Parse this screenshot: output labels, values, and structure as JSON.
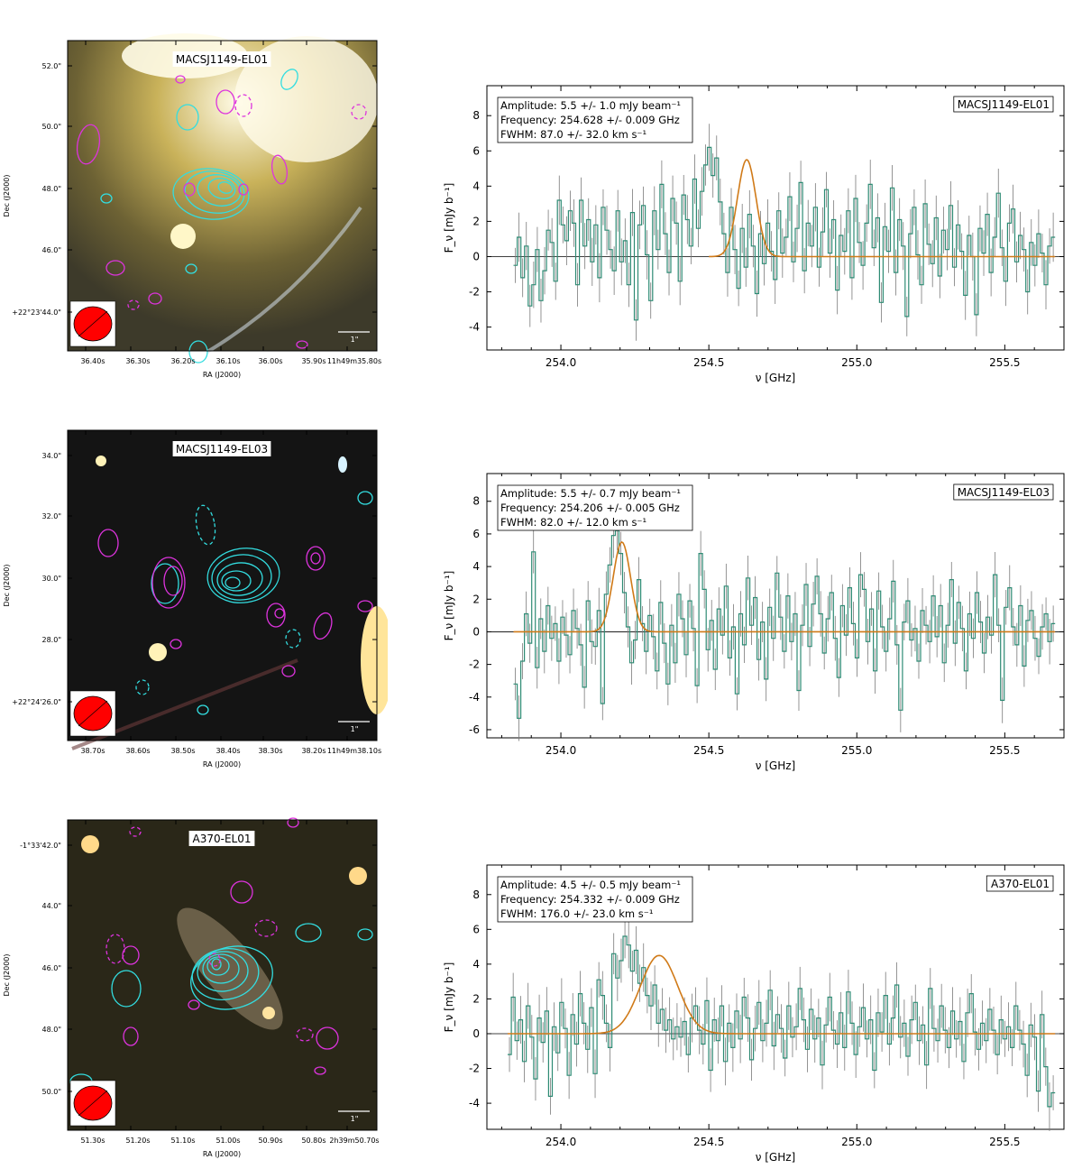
{
  "rows": [
    {
      "image": {
        "label": "MACSJ1149-EL01",
        "ra_ticks": [
          "36.40s",
          "36.30s",
          "36.20s",
          "36.10s",
          "36.00s",
          "35.90s",
          "11h49m35.80s"
        ],
        "dec_ticks": [
          "52.0\"",
          "50.0\"",
          "48.0\"",
          "46.0\"",
          "+22°23'44.0\""
        ],
        "xlabel": "RA (J2000)",
        "ylabel": "Dec (J2000)",
        "scale_label": "1\"",
        "background": "bright"
      },
      "spectrum": {
        "label": "MACSJ1149-EL01",
        "amplitude_text": "Amplitude: 5.5 +/- 1.0 mJy beam⁻¹",
        "frequency_text": "Frequency: 254.628 +/- 0.009 GHz",
        "fwhm_text": "FWHM: 87.0 +/- 32.0 km s⁻¹"
      }
    },
    {
      "image": {
        "label": "MACSJ1149-EL03",
        "ra_ticks": [
          "38.70s",
          "38.60s",
          "38.50s",
          "38.40s",
          "38.30s",
          "38.20s",
          "11h49m38.10s"
        ],
        "dec_ticks": [
          "34.0\"",
          "32.0\"",
          "30.0\"",
          "28.0\"",
          "+22°24'26.0\""
        ],
        "xlabel": "RA (J2000)",
        "ylabel": "Dec (J2000)",
        "scale_label": "1\"",
        "background": "dark"
      },
      "spectrum": {
        "label": "MACSJ1149-EL03",
        "amplitude_text": "Amplitude: 5.5 +/- 0.7 mJy beam⁻¹",
        "frequency_text": "Frequency: 254.206 +/- 0.005 GHz",
        "fwhm_text": "FWHM: 82.0 +/- 12.0 km s⁻¹"
      }
    },
    {
      "image": {
        "label": "A370-EL01",
        "ra_ticks": [
          "51.30s",
          "51.20s",
          "51.10s",
          "51.00s",
          "50.90s",
          "50.80s",
          "2h39m50.70s"
        ],
        "dec_ticks": [
          "-1°33'42.0\"",
          "44.0\"",
          "46.0\"",
          "48.0\"",
          "50.0\""
        ],
        "xlabel": "RA (J2000)",
        "ylabel": "Dec (J2000)",
        "scale_label": "1\"",
        "background": "galaxy"
      },
      "spectrum": {
        "label": "A370-EL01",
        "amplitude_text": "Amplitude: 4.5 +/- 0.5 mJy beam⁻¹",
        "frequency_text": "Frequency: 254.332 +/- 0.009 GHz",
        "fwhm_text": "FWHM: 176.0 +/- 23.0 km s⁻¹"
      }
    }
  ],
  "chart_data": [
    {
      "type": "line",
      "title": "MACSJ1149-EL01",
      "xlabel": "ν [GHz]",
      "ylabel": "F_ν [mJy b⁻¹]",
      "xlim": [
        253.75,
        255.7
      ],
      "ylim": [
        -5.3,
        9.7
      ],
      "xticks": [
        254.0,
        254.5,
        255.0,
        255.5
      ],
      "yticks": [
        -4,
        -2,
        0,
        2,
        4,
        6,
        8
      ],
      "fit": {
        "amplitude": 5.5,
        "center": 254.628,
        "fwhm_kms": 87.0
      },
      "data_range": [
        253.84,
        255.67
      ],
      "series": [
        {
          "values": [
            -0.5,
            1.1,
            -1.2,
            0.6,
            -2.8,
            -1.6,
            0.4,
            -2.5,
            -0.8,
            1.5,
            0.8,
            -1.4,
            3.2,
            1.8,
            0.9,
            2.6,
            1.9,
            -1.6,
            3.2,
            0.6,
            2.1,
            -0.3,
            1.8,
            -1.2,
            2.8,
            1.5,
            0.4,
            -0.8,
            2.6,
            -0.3,
            0.9,
            -1.6,
            2.5,
            -3.6,
            1.8,
            2.9,
            0.1,
            -2.5,
            2.6,
            0.4,
            4.1,
            1.3,
            -0.9,
            3.3,
            1.9,
            -1.4,
            3.5,
            2.1,
            0.6,
            4.4,
            1.6,
            3.7,
            5.2,
            6.2,
            4.6,
            5.6,
            3.1,
            1.3,
            -0.9,
            2.8,
            0.4,
            -1.8,
            1.6,
            -0.6,
            2.4,
            0.6,
            -2.1,
            1.3,
            -0.4,
            1.9,
            0.3,
            -1.3,
            2.6,
            0.2,
            1.1,
            3.4,
            -0.3,
            1.6,
            4.2,
            -0.8,
            1.9,
            0.6,
            2.8,
            -0.6,
            1.4,
            3.8,
            0.2,
            2.1,
            -1.9,
            1.2,
            0.3,
            2.6,
            -1.2,
            3.3,
            0.8,
            -0.5,
            1.9,
            4.1,
            0.5,
            2.2,
            -2.6,
            1.7,
            0.3,
            3.9,
            -0.9,
            2.1,
            0.6,
            -3.4,
            1.3,
            2.8,
            0.1,
            -1.6,
            3.0,
            0.7,
            -0.4,
            2.2,
            -1.1,
            1.5,
            0.4,
            2.9,
            -0.6,
            1.8,
            0.3,
            -2.2,
            1.2,
            0.0,
            -3.3,
            1.6,
            0.2,
            2.4,
            -0.9,
            1.1,
            3.6,
            0.5,
            -1.4,
            1.9,
            2.7,
            -0.3,
            1.2,
            0.4,
            -2.0,
            0.8,
            -0.5,
            1.3,
            0.2,
            -1.6,
            0.6,
            1.1
          ]
        }
      ]
    },
    {
      "type": "line",
      "title": "MACSJ1149-EL03",
      "xlabel": "ν [GHz]",
      "ylabel": "F_ν [mJy b⁻¹]",
      "xlim": [
        253.75,
        255.7
      ],
      "ylim": [
        -6.5,
        9.7
      ],
      "xticks": [
        254.0,
        254.5,
        255.0,
        255.5
      ],
      "yticks": [
        -6,
        -4,
        -2,
        0,
        2,
        4,
        6,
        8
      ],
      "fit": {
        "amplitude": 5.5,
        "center": 254.206,
        "fwhm_kms": 82.0
      },
      "data_range": [
        253.84,
        255.67
      ],
      "series": [
        {
          "values": [
            -3.2,
            -5.3,
            -1.8,
            1.1,
            -0.7,
            4.9,
            -2.2,
            0.8,
            -1.2,
            1.6,
            -0.4,
            0.5,
            -1.8,
            0.9,
            -0.2,
            -1.4,
            1.3,
            0.2,
            -0.8,
            -3.4,
            1.9,
            -0.6,
            -0.9,
            1.3,
            -4.4,
            2.3,
            4.1,
            5.9,
            6.2,
            4.8,
            2.4,
            0.3,
            -1.9,
            -0.5,
            3.2,
            0.5,
            -1.2,
            1.0,
            -0.3,
            -2.4,
            1.8,
            -0.7,
            -3.2,
            0.4,
            -1.9,
            2.3,
            0.8,
            -1.4,
            1.9,
            0.2,
            -3.3,
            4.8,
            2.6,
            -1.1,
            0.7,
            -2.3,
            1.4,
            -0.2,
            2.8,
            -1.6,
            0.3,
            -3.8,
            1.1,
            -0.8,
            3.3,
            0.4,
            2.1,
            -1.7,
            0.6,
            -2.9,
            1.5,
            -0.4,
            3.6,
            0.9,
            -1.2,
            2.2,
            -0.6,
            1.1,
            -3.6,
            0.4,
            2.9,
            -0.9,
            1.7,
            3.4,
            1.1,
            -1.3,
            0.8,
            2.4,
            -0.4,
            -2.8,
            1.6,
            -0.2,
            2.7,
            0.5,
            -1.6,
            3.5,
            2.6,
            -0.6,
            1.4,
            -2.4,
            2.5,
            0.3,
            -1.2,
            0.8,
            3.1,
            -0.8,
            -4.8,
            0.6,
            1.9,
            -0.5,
            0.2,
            -1.8,
            1.3,
            0.4,
            -0.6,
            2.2,
            -0.3,
            1.6,
            -1.9,
            0.4,
            3.2,
            -0.7,
            1.8,
            0.2,
            -2.4,
            1.1,
            -0.4,
            2.4,
            0.6,
            -1.3,
            0.9,
            -0.2,
            3.5,
            0.4,
            -4.2,
            1.5,
            2.7,
            0.3,
            -0.8,
            1.6,
            -2.1,
            0.7,
            1.3,
            -0.4,
            -1.5,
            0.3,
            1.1,
            -0.6,
            0.5
          ]
        }
      ]
    },
    {
      "type": "line",
      "title": "A370-EL01",
      "xlabel": "ν [GHz]",
      "ylabel": "F_ν [mJy b⁻¹]",
      "xlim": [
        253.75,
        255.7
      ],
      "ylim": [
        -5.5,
        9.7
      ],
      "xticks": [
        254.0,
        254.5,
        255.0,
        255.5
      ],
      "yticks": [
        -4,
        -2,
        0,
        2,
        4,
        6,
        8
      ],
      "fit": {
        "amplitude": 4.5,
        "center": 254.332,
        "fwhm_kms": 176.0
      },
      "data_range": [
        253.82,
        255.67
      ],
      "series": [
        {
          "values": [
            -1.2,
            2.1,
            -0.4,
            0.8,
            -1.6,
            1.6,
            -0.2,
            -2.6,
            0.9,
            -0.5,
            1.3,
            -3.6,
            0.4,
            -1.1,
            1.8,
            0.3,
            -2.4,
            1.1,
            -0.6,
            2.3,
            0.6,
            -0.9,
            1.5,
            -2.3,
            3.1,
            2.2,
            0.6,
            -0.8,
            4.6,
            3.2,
            4.2,
            5.6,
            5.1,
            3.6,
            4.8,
            2.9,
            3.8,
            2.2,
            1.6,
            2.8,
            0.6,
            1.4,
            0.2,
            0.8,
            -0.3,
            0.4,
            -0.2,
            0.7,
            -1.2,
            0.9,
            1.6,
            0.2,
            -0.6,
            1.9,
            -2.1,
            0.8,
            -0.4,
            1.6,
            -1.6,
            0.6,
            -0.8,
            1.3,
            -0.3,
            2.1,
            0.9,
            -1.5,
            0.3,
            1.8,
            -0.4,
            0.6,
            2.5,
            -0.7,
            1.1,
            0.3,
            -1.4,
            1.6,
            -0.2,
            0.4,
            2.6,
            0.8,
            -0.9,
            1.4,
            -0.3,
            0.9,
            -1.8,
            0.5,
            2.1,
            0.2,
            -0.6,
            1.2,
            -0.8,
            2.4,
            0.6,
            -1.2,
            0.4,
            1.5,
            -0.3,
            0.8,
            -2.1,
            1.2,
            0.1,
            2.2,
            -0.6,
            0.9,
            2.8,
            -0.2,
            0.6,
            -1.3,
            0.8,
            1.8,
            -0.4,
            0.5,
            -1.8,
            2.6,
            0.3,
            -0.4,
            1.6,
            0.2,
            -0.8,
            1.3,
            -0.3,
            0.7,
            -1.6,
            1.2,
            2.3,
            0.1,
            -0.9,
            0.6,
            -0.4,
            1.4,
            0.2,
            -1.2,
            0.8,
            -0.3,
            0.4,
            -0.8,
            1.6,
            0.2,
            -0.6,
            -2.4,
            0.5,
            -0.2,
            -3.3,
            1.1,
            -1.9,
            -4.2,
            -3.4
          ]
        }
      ]
    }
  ],
  "colors": {
    "data_line": "#2e8b74",
    "fit_line": "#d07a18",
    "contour_positive": "#33dde0",
    "contour_negative": "#dd33dd",
    "beam": "#ff0000"
  }
}
